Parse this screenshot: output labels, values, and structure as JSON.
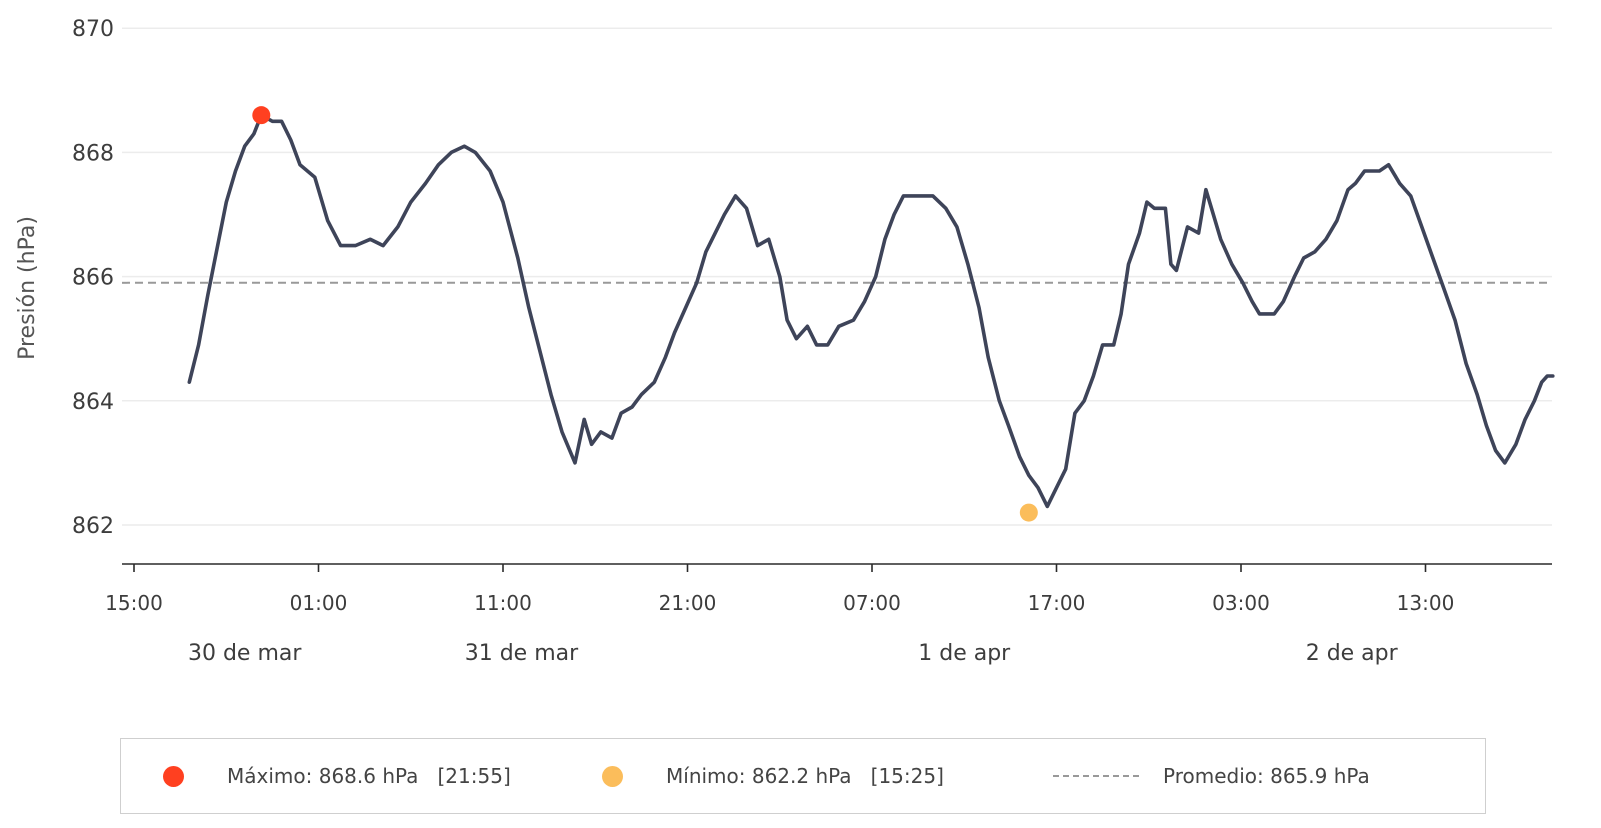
{
  "chart_data": {
    "type": "line",
    "title": "",
    "xlabel": "",
    "ylabel": "Presión (hPa)",
    "ylim": [
      861.6,
      870.1
    ],
    "yticks": [
      862,
      864,
      866,
      868,
      870
    ],
    "grid": "horizontal",
    "x_unit": "hours",
    "x_start_label": "15:00",
    "xlim_hours": [
      0,
      79
    ],
    "xtick_labels": [
      "15:00",
      "01:00",
      "11:00",
      "21:00",
      "07:00",
      "17:00",
      "03:00",
      "13:00"
    ],
    "day_labels": [
      {
        "label": "30 de mar",
        "h": 6
      },
      {
        "label": "31 de mar",
        "h": 21
      },
      {
        "label": "1 de apr",
        "h": 45
      },
      {
        "label": "2 de apr",
        "h": 66
      }
    ],
    "series": [
      {
        "name": "",
        "color": "#3e4459",
        "points": [
          [
            3.0,
            864.3
          ],
          [
            3.5,
            864.9
          ],
          [
            4.0,
            865.7
          ],
          [
            4.6,
            866.6
          ],
          [
            5.0,
            867.2
          ],
          [
            5.5,
            867.7
          ],
          [
            6.0,
            868.1
          ],
          [
            6.5,
            868.3
          ],
          [
            6.9,
            868.6
          ],
          [
            7.5,
            868.5
          ],
          [
            8.0,
            868.5
          ],
          [
            8.5,
            868.2
          ],
          [
            9.0,
            867.8
          ],
          [
            9.8,
            867.6
          ],
          [
            10.5,
            866.9
          ],
          [
            11.2,
            866.5
          ],
          [
            12.0,
            866.5
          ],
          [
            12.8,
            866.6
          ],
          [
            13.5,
            866.5
          ],
          [
            14.3,
            866.8
          ],
          [
            15.0,
            867.2
          ],
          [
            15.8,
            867.5
          ],
          [
            16.5,
            867.8
          ],
          [
            17.2,
            868.0
          ],
          [
            17.9,
            868.1
          ],
          [
            18.5,
            868.0
          ],
          [
            19.3,
            867.7
          ],
          [
            20.0,
            867.2
          ],
          [
            20.8,
            866.3
          ],
          [
            21.4,
            865.5
          ],
          [
            22.0,
            864.8
          ],
          [
            22.6,
            864.1
          ],
          [
            23.2,
            863.5
          ],
          [
            23.9,
            863.0
          ],
          [
            24.4,
            863.7
          ],
          [
            24.8,
            863.3
          ],
          [
            25.3,
            863.5
          ],
          [
            25.9,
            863.4
          ],
          [
            26.4,
            863.8
          ],
          [
            27.0,
            863.9
          ],
          [
            27.5,
            864.1
          ],
          [
            28.2,
            864.3
          ],
          [
            28.8,
            864.7
          ],
          [
            29.3,
            865.1
          ],
          [
            29.9,
            865.5
          ],
          [
            30.5,
            865.9
          ],
          [
            31.0,
            866.4
          ],
          [
            31.5,
            866.7
          ],
          [
            32.0,
            867.0
          ],
          [
            32.6,
            867.3
          ],
          [
            33.2,
            867.1
          ],
          [
            33.8,
            866.5
          ],
          [
            34.4,
            866.6
          ],
          [
            35.0,
            866.0
          ],
          [
            35.4,
            865.3
          ],
          [
            35.9,
            865.0
          ],
          [
            36.5,
            865.2
          ],
          [
            37.0,
            864.9
          ],
          [
            37.6,
            864.9
          ],
          [
            38.2,
            865.2
          ],
          [
            39.0,
            865.3
          ],
          [
            39.6,
            865.6
          ],
          [
            40.2,
            866.0
          ],
          [
            40.7,
            866.6
          ],
          [
            41.2,
            867.0
          ],
          [
            41.7,
            867.3
          ],
          [
            42.5,
            867.3
          ],
          [
            43.3,
            867.3
          ],
          [
            44.0,
            867.1
          ],
          [
            44.6,
            866.8
          ],
          [
            45.2,
            866.2
          ],
          [
            45.8,
            865.5
          ],
          [
            46.3,
            864.7
          ],
          [
            46.9,
            864.0
          ],
          [
            47.4,
            863.6
          ],
          [
            48.0,
            863.1
          ],
          [
            48.5,
            862.8
          ],
          [
            49.0,
            862.6
          ],
          [
            49.5,
            862.3
          ],
          [
            50.0,
            862.6
          ],
          [
            50.5,
            862.9
          ],
          [
            51.0,
            863.8
          ],
          [
            51.5,
            864.0
          ],
          [
            52.0,
            864.4
          ],
          [
            52.5,
            864.9
          ],
          [
            53.1,
            864.9
          ],
          [
            53.5,
            865.4
          ],
          [
            53.9,
            866.2
          ],
          [
            54.5,
            866.7
          ],
          [
            54.9,
            867.2
          ],
          [
            55.3,
            867.1
          ],
          [
            55.9,
            867.1
          ],
          [
            56.2,
            866.2
          ],
          [
            56.5,
            866.1
          ],
          [
            57.1,
            866.8
          ],
          [
            57.7,
            866.7
          ],
          [
            58.1,
            867.4
          ],
          [
            58.4,
            867.1
          ],
          [
            58.9,
            866.6
          ],
          [
            59.5,
            866.2
          ],
          [
            60.1,
            865.9
          ],
          [
            60.6,
            865.6
          ],
          [
            61.0,
            865.4
          ],
          [
            61.8,
            865.4
          ],
          [
            62.3,
            865.6
          ],
          [
            62.9,
            866.0
          ],
          [
            63.4,
            866.3
          ],
          [
            64.0,
            866.4
          ],
          [
            64.6,
            866.6
          ],
          [
            65.2,
            866.9
          ],
          [
            65.8,
            867.4
          ],
          [
            66.2,
            867.5
          ],
          [
            66.7,
            867.7
          ],
          [
            67.5,
            867.7
          ],
          [
            68.0,
            867.8
          ],
          [
            68.6,
            867.5
          ],
          [
            69.2,
            867.3
          ],
          [
            69.8,
            866.8
          ],
          [
            70.4,
            866.3
          ],
          [
            71.0,
            865.8
          ],
          [
            71.6,
            865.3
          ],
          [
            72.2,
            864.6
          ],
          [
            72.8,
            864.1
          ],
          [
            73.3,
            863.6
          ],
          [
            73.8,
            863.2
          ],
          [
            74.3,
            863.0
          ],
          [
            74.9,
            863.3
          ],
          [
            75.4,
            863.7
          ],
          [
            75.9,
            864.0
          ],
          [
            76.3,
            864.3
          ],
          [
            76.6,
            864.4
          ],
          [
            76.9,
            864.4
          ]
        ]
      }
    ],
    "max_marker": {
      "h": 6.9,
      "value": 868.6,
      "color": "#ff4020"
    },
    "min_marker": {
      "h": 48.5,
      "value": 862.2,
      "color": "#fbbd5b"
    },
    "mean_line": {
      "value": 865.9,
      "color": "#999999"
    }
  },
  "legend": {
    "max_text": "Máximo: 868.6 hPa   [21:55]",
    "min_text": "Mínimo: 862.2 hPa   [15:25]",
    "mean_text": "Promedio: 865.9 hPa",
    "max_color": "#ff4020",
    "min_color": "#fbbd5b",
    "mean_color": "#999999"
  }
}
